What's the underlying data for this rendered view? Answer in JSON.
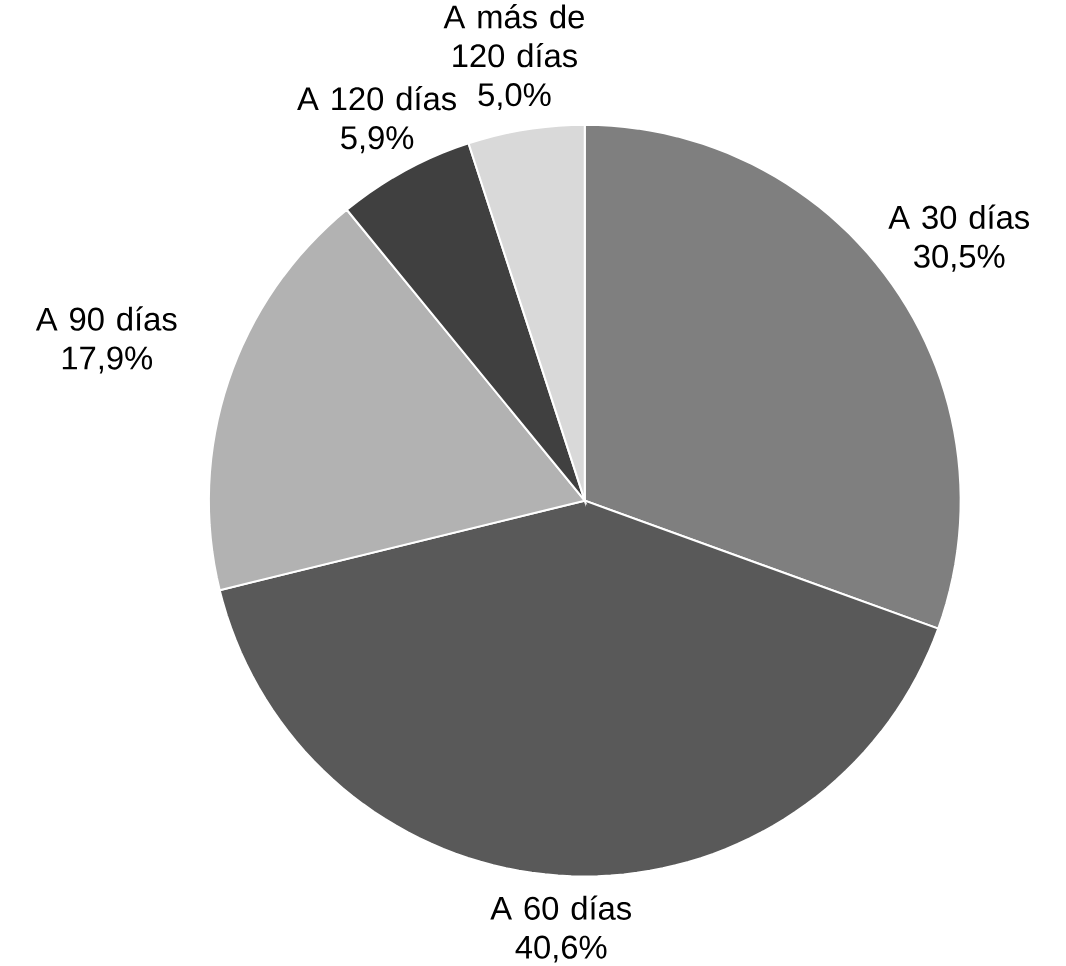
{
  "chart_data": {
    "type": "pie",
    "categories": [
      "A 30 días",
      "A 60 días",
      "A 90 días",
      "A 120 días",
      "A más de 120 días"
    ],
    "values": [
      30.5,
      40.6,
      17.9,
      5.9,
      5.0
    ],
    "value_labels": [
      "30,5%",
      "40,6%",
      "17,9%",
      "5,9%",
      "5,0%"
    ],
    "colors": [
      "#7f7f7f",
      "#595959",
      "#b2b2b2",
      "#404040",
      "#d9d9d9"
    ]
  }
}
